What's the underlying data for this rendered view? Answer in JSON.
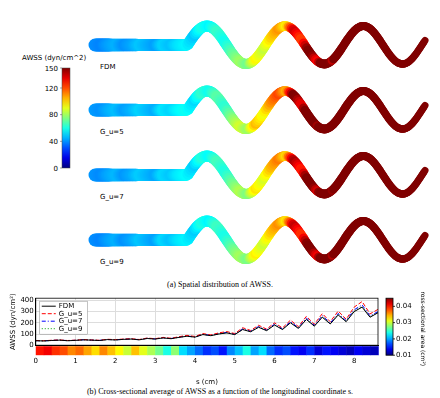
{
  "spatial_map": {
    "caption": "(a) Spatial distribution of AWSS.",
    "colorbar": {
      "label": "AWSS (dyn/cm^2)",
      "range": [
        0,
        150
      ],
      "ticks": [
        0,
        40,
        80,
        120,
        150
      ]
    }
  },
  "chart_data": {
    "type": "line",
    "caption": "(b) Cross-sectional average of AWSS as a function of the longitudinal coordinate s.",
    "x_label": "s (cm)",
    "y_label": "AWSS (dyn/cm²)",
    "x": [
      0,
      0.2,
      0.4,
      0.6,
      0.8,
      1.0,
      1.2,
      1.4,
      1.6,
      1.8,
      2.0,
      2.2,
      2.4,
      2.6,
      2.8,
      3.0,
      3.2,
      3.4,
      3.6,
      3.8,
      4.0,
      4.2,
      4.4,
      4.6,
      4.8,
      5.0,
      5.2,
      5.4,
      5.6,
      5.8,
      6.0,
      6.2,
      6.4,
      6.6,
      6.8,
      7.0,
      7.2,
      7.4,
      7.6,
      7.8,
      8.0,
      8.2,
      8.4,
      8.6
    ],
    "series": [
      {
        "name": "FDM",
        "color": "#000000",
        "line_style": "solid",
        "values": [
          40,
          38,
          42,
          45,
          40,
          43,
          48,
          45,
          42,
          50,
          47,
          52,
          55,
          48,
          60,
          55,
          65,
          58,
          70,
          80,
          72,
          95,
          85,
          100,
          110,
          95,
          140,
          120,
          160,
          130,
          180,
          140,
          200,
          150,
          230,
          170,
          250,
          190,
          270,
          210,
          300,
          340,
          250,
          290
        ]
      },
      {
        "name": "G_u=5",
        "color": "#ff0000",
        "line_style": "dashed",
        "values": [
          42,
          40,
          44,
          47,
          42,
          45,
          50,
          47,
          44,
          53,
          50,
          55,
          58,
          51,
          64,
          58,
          70,
          62,
          76,
          88,
          78,
          104,
          92,
          110,
          122,
          104,
          156,
          132,
          178,
          144,
          200,
          154,
          224,
          166,
          258,
          188,
          282,
          210,
          305,
          232,
          340,
          390,
          280,
          320
        ]
      },
      {
        "name": "G_u=7",
        "color": "#0000ff",
        "line_style": "dashdot",
        "values": [
          41,
          39,
          43,
          46,
          41,
          44,
          49,
          46,
          43,
          51,
          48,
          53,
          56,
          49,
          62,
          56,
          67,
          60,
          72,
          83,
          74,
          98,
          88,
          104,
          114,
          98,
          146,
          125,
          167,
          136,
          188,
          146,
          210,
          157,
          242,
          178,
          264,
          198,
          284,
          220,
          316,
          360,
          262,
          300
        ]
      },
      {
        "name": "G_u=9",
        "color": "#00a000",
        "line_style": "dotted",
        "values": [
          40,
          38,
          42,
          45,
          40,
          43,
          48,
          45,
          42,
          51,
          47,
          52,
          55,
          49,
          61,
          55,
          66,
          59,
          71,
          81,
          73,
          96,
          86,
          101,
          111,
          96,
          142,
          122,
          162,
          132,
          183,
          142,
          203,
          152,
          234,
          172,
          254,
          192,
          274,
          213,
          305,
          346,
          254,
          293
        ]
      }
    ],
    "xlim": [
      0,
      8.6
    ],
    "xticks": [
      0,
      1,
      2,
      3,
      4,
      5,
      6,
      7,
      8
    ],
    "ylim": [
      0,
      420
    ],
    "yticks": [
      0,
      100,
      200,
      300,
      400
    ],
    "grid": true,
    "legend": "upper left",
    "cross_sectional_area": {
      "label": "Cross-sectional area (cm²)",
      "range": [
        0.01,
        0.045
      ],
      "ticks": [
        0.01,
        0.02,
        0.03,
        0.04
      ],
      "values": [
        0.04,
        0.041,
        0.039,
        0.038,
        0.036,
        0.037,
        0.035,
        0.033,
        0.036,
        0.034,
        0.032,
        0.03,
        0.034,
        0.031,
        0.029,
        0.027,
        0.024,
        0.028,
        0.022,
        0.02,
        0.018,
        0.016,
        0.017,
        0.015,
        0.019,
        0.021,
        0.024,
        0.02,
        0.022,
        0.018,
        0.016,
        0.017,
        0.015,
        0.014,
        0.016,
        0.013,
        0.015,
        0.014,
        0.013,
        0.012,
        0.014,
        0.013,
        0.012,
        0.013
      ]
    }
  }
}
